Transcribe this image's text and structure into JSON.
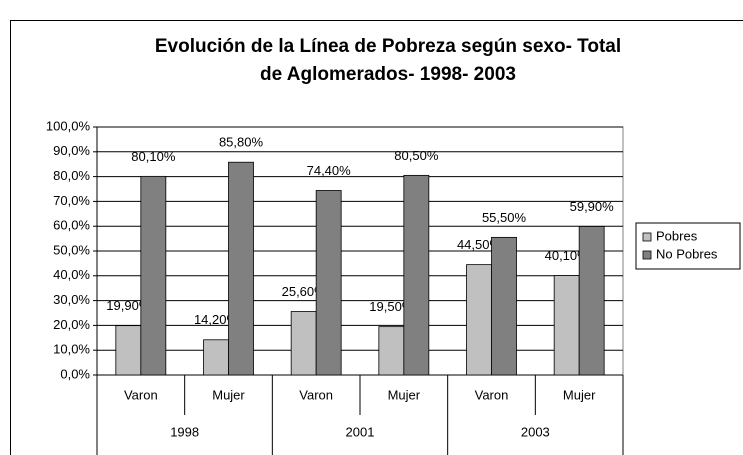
{
  "chart_data": {
    "type": "bar",
    "title_lines": [
      "Evolución de la Línea de Pobreza según sexo- Total",
      "de Aglomerados-   1998- 2003"
    ],
    "categories": [
      "Varon",
      "Mujer",
      "Varon",
      "Mujer",
      "Varon",
      "Mujer"
    ],
    "groups": [
      "1998",
      "2001",
      "2003"
    ],
    "series": [
      {
        "name": "Pobres",
        "color": "#c0c0c0",
        "values": [
          19.9,
          14.2,
          25.6,
          19.5,
          44.5,
          40.1
        ],
        "value_labels": [
          "19,90%",
          "14,20%",
          "25,60%",
          "19,50%",
          "44,50%",
          "40,10%"
        ]
      },
      {
        "name": "No Pobres",
        "color": "#808080",
        "values": [
          80.1,
          85.8,
          74.4,
          80.5,
          55.5,
          59.9
        ],
        "value_labels": [
          "80,10%",
          "85,80%",
          "74,40%",
          "80,50%",
          "55,50%",
          "59,90%"
        ]
      }
    ],
    "ylim": [
      0,
      100
    ],
    "yticks": [
      {
        "value": 0,
        "label": "0,0%"
      },
      {
        "value": 10,
        "label": "10,0%"
      },
      {
        "value": 20,
        "label": "20,0%"
      },
      {
        "value": 30,
        "label": "30,0%"
      },
      {
        "value": 40,
        "label": "40,0%"
      },
      {
        "value": 50,
        "label": "50,0%"
      },
      {
        "value": 60,
        "label": "60,0%"
      },
      {
        "value": 70,
        "label": "70,0%"
      },
      {
        "value": 80,
        "label": "80,0%"
      },
      {
        "value": 90,
        "label": "90,0%"
      },
      {
        "value": 100,
        "label": "100,0%"
      }
    ],
    "grid": true,
    "legend": "right"
  }
}
